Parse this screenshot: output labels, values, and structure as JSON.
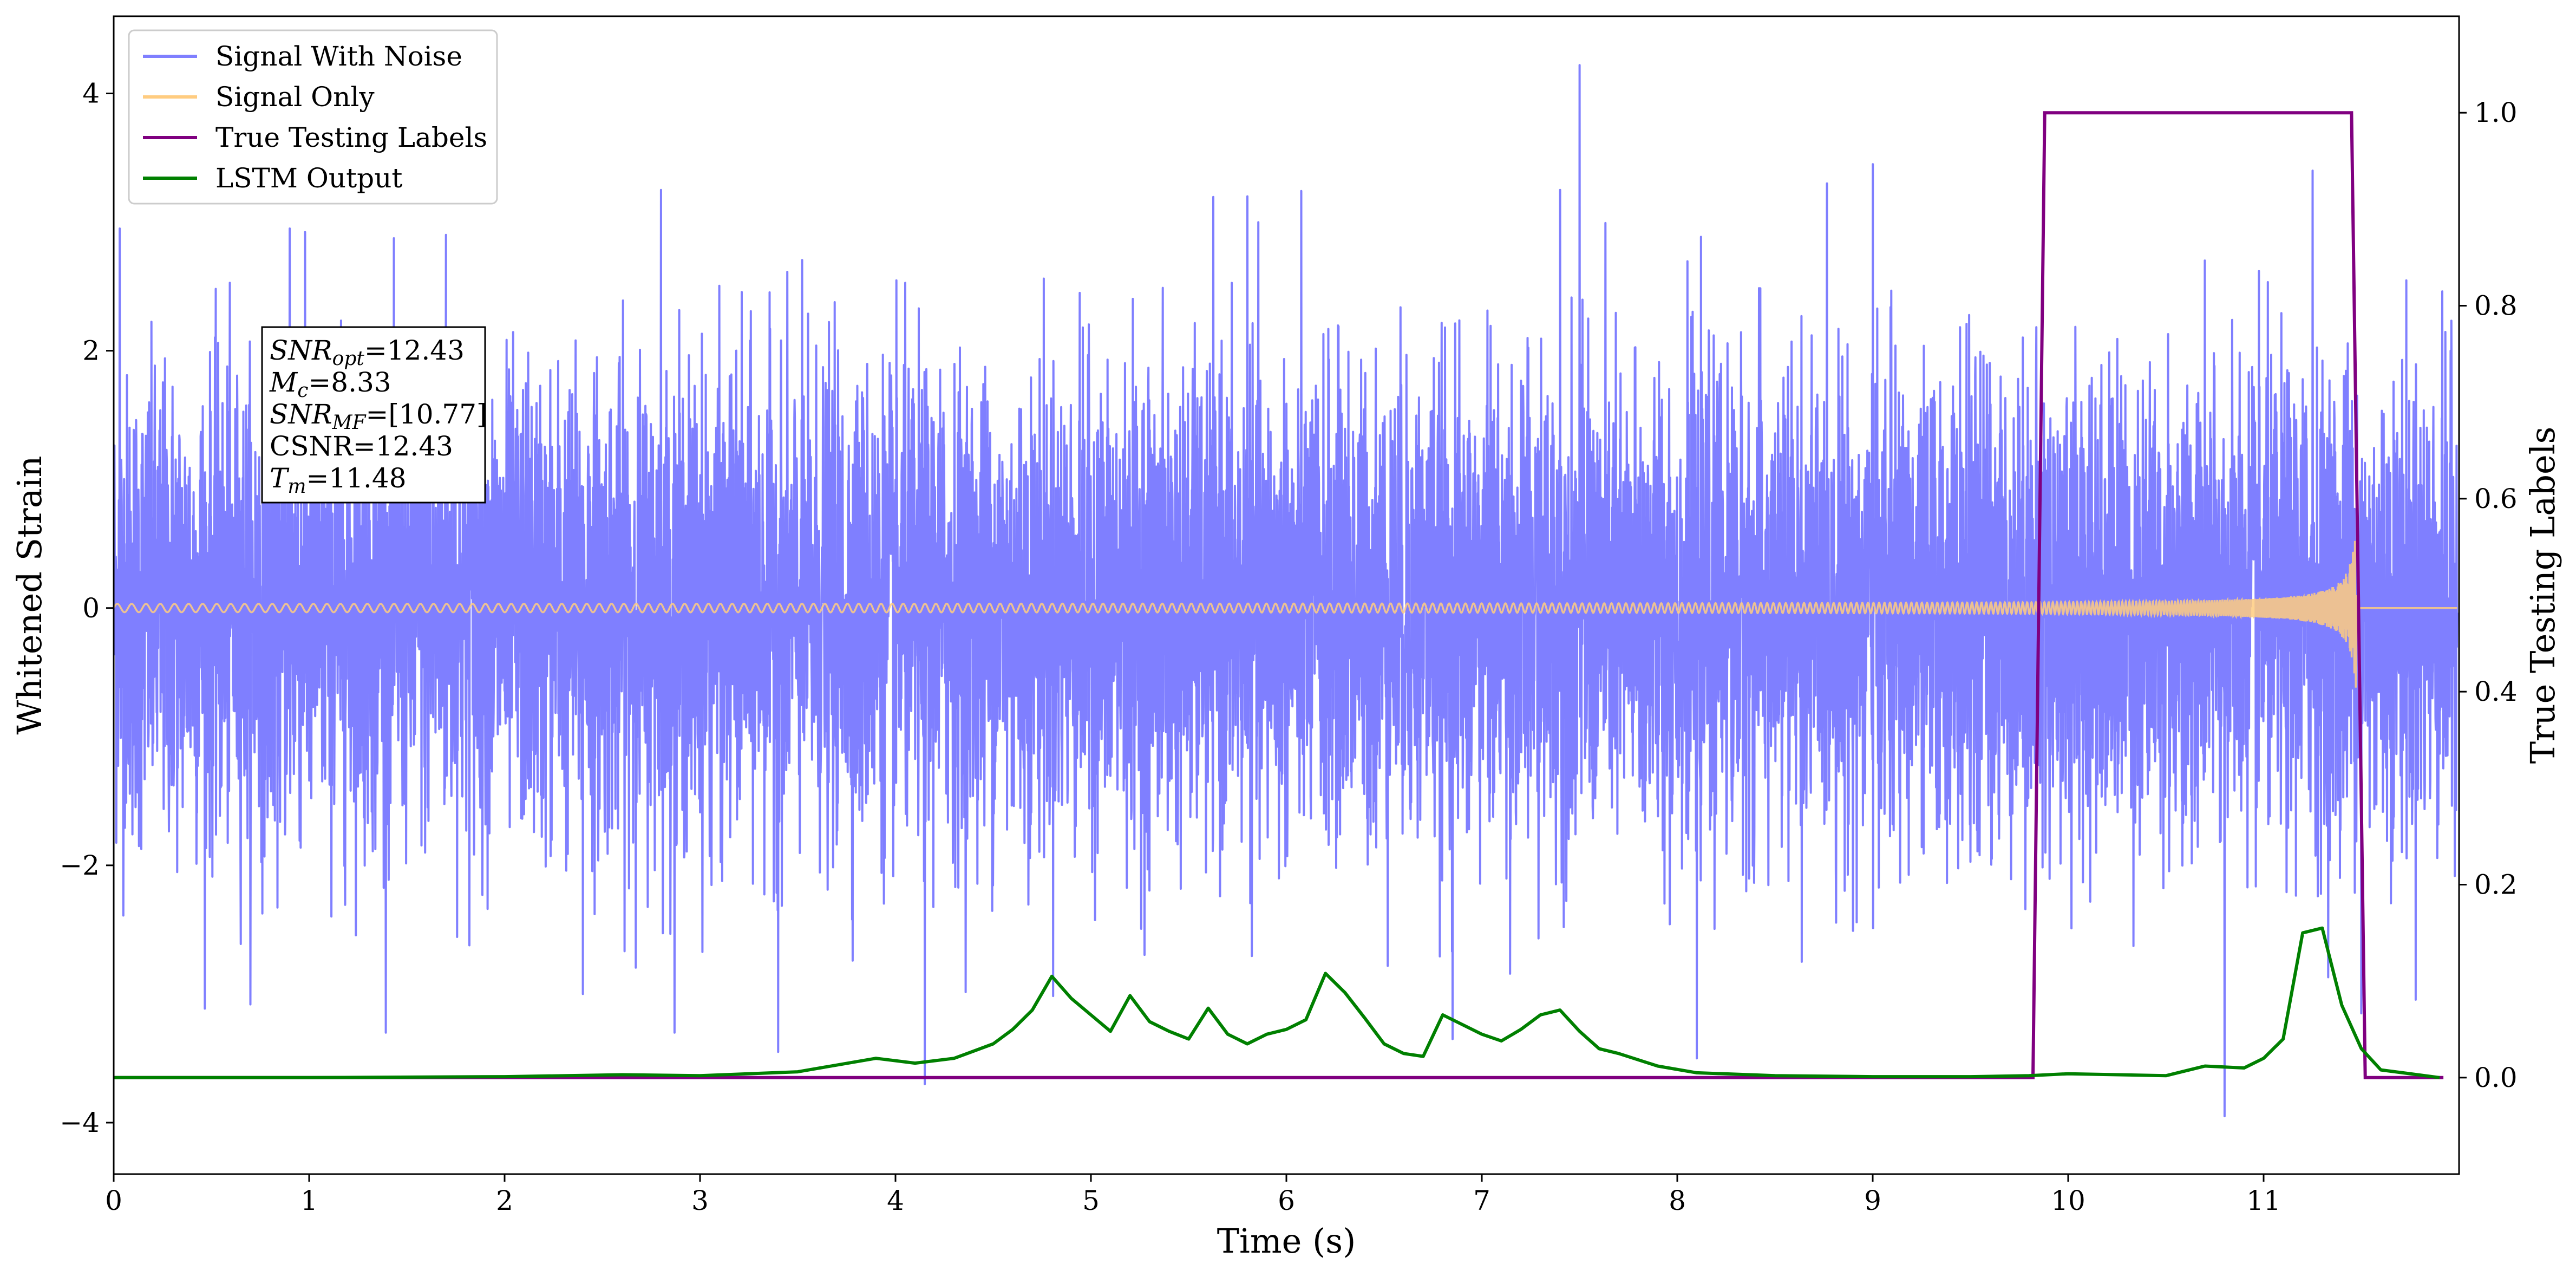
{
  "chart_data": {
    "type": "line",
    "xlabel": "Time (s)",
    "ylabel": "Whitened Strain",
    "ylabel_right": "True Testing Labels",
    "xlim": [
      0,
      12
    ],
    "ylim": [
      -4.4,
      4.6
    ],
    "ylim_right": [
      -0.1,
      1.1
    ],
    "x_ticks": [
      0,
      1,
      2,
      3,
      4,
      5,
      6,
      7,
      8,
      9,
      10,
      11
    ],
    "x_tick_labels": [
      "0",
      "1",
      "2",
      "3",
      "4",
      "5",
      "6",
      "7",
      "8",
      "9",
      "10",
      "11"
    ],
    "y_ticks": [
      -4,
      -2,
      0,
      2,
      4
    ],
    "y_tick_labels": [
      "−4",
      "−2",
      "0",
      "2",
      "4"
    ],
    "y_right_ticks": [
      0.0,
      0.2,
      0.4,
      0.6,
      0.8,
      1.0
    ],
    "y_right_tick_labels": [
      "0.0",
      "0.2",
      "0.4",
      "0.6",
      "0.8",
      "1.0"
    ],
    "grid": false,
    "legend_position": "top-left",
    "series": [
      {
        "name": "Signal With Noise",
        "color": "#7f7fff",
        "axis": "left",
        "noise_std": 0.9,
        "spike_peaks": [
          {
            "x": 0.03,
            "y": 2.95
          },
          {
            "x": 0.9,
            "y": 2.95
          },
          {
            "x": 1.7,
            "y": 2.9
          },
          {
            "x": 2.4,
            "y": -3.0
          },
          {
            "x": 2.8,
            "y": 3.25
          },
          {
            "x": 3.4,
            "y": -3.45
          },
          {
            "x": 4.15,
            "y": -3.7
          },
          {
            "x": 5.8,
            "y": 3.2
          },
          {
            "x": 6.85,
            "y": -3.35
          },
          {
            "x": 7.4,
            "y": 3.25
          },
          {
            "x": 7.5,
            "y": 4.22
          },
          {
            "x": 8.1,
            "y": -3.5
          },
          {
            "x": 9.0,
            "y": 3.45
          },
          {
            "x": 10.8,
            "y": -3.95
          },
          {
            "x": 11.25,
            "y": 3.4
          },
          {
            "x": 11.5,
            "y": -3.15
          }
        ]
      },
      {
        "name": "Signal Only",
        "color": "#ffcc80",
        "axis": "left",
        "chirp": {
          "merger_time": 11.48,
          "initial_amplitude": 0.03,
          "final_amplitude": 0.85
        }
      },
      {
        "name": "True Testing Labels",
        "color": "#800080",
        "axis": "right",
        "x": [
          0,
          9.82,
          9.88,
          11.45,
          11.52,
          11.92
        ],
        "y": [
          0,
          0,
          1,
          1,
          0,
          0
        ]
      },
      {
        "name": "LSTM Output",
        "color": "#008000",
        "axis": "right",
        "x": [
          0,
          1.0,
          2.0,
          2.6,
          3.0,
          3.5,
          3.9,
          4.1,
          4.3,
          4.5,
          4.6,
          4.7,
          4.8,
          4.9,
          5.0,
          5.1,
          5.2,
          5.3,
          5.4,
          5.5,
          5.6,
          5.7,
          5.8,
          5.9,
          6.0,
          6.1,
          6.2,
          6.3,
          6.4,
          6.5,
          6.6,
          6.7,
          6.8,
          6.9,
          7.0,
          7.1,
          7.2,
          7.3,
          7.4,
          7.5,
          7.6,
          7.7,
          7.9,
          8.1,
          8.5,
          9.0,
          9.5,
          9.8,
          10.0,
          10.5,
          10.7,
          10.9,
          11.0,
          11.1,
          11.2,
          11.3,
          11.4,
          11.5,
          11.6,
          11.9
        ],
        "y": [
          0,
          0,
          0.001,
          0.003,
          0.002,
          0.006,
          0.02,
          0.015,
          0.02,
          0.035,
          0.05,
          0.07,
          0.105,
          0.082,
          0.065,
          0.048,
          0.085,
          0.058,
          0.048,
          0.04,
          0.072,
          0.045,
          0.035,
          0.045,
          0.05,
          0.06,
          0.108,
          0.088,
          0.062,
          0.035,
          0.025,
          0.022,
          0.065,
          0.055,
          0.045,
          0.038,
          0.05,
          0.065,
          0.07,
          0.048,
          0.03,
          0.025,
          0.012,
          0.005,
          0.002,
          0.001,
          0.001,
          0.002,
          0.004,
          0.002,
          0.012,
          0.01,
          0.02,
          0.04,
          0.15,
          0.155,
          0.075,
          0.03,
          0.008,
          0.0
        ]
      }
    ],
    "annotation": [
      {
        "base": "SNR",
        "sub": "opt",
        "value": "=12.43"
      },
      {
        "base": "M",
        "sub": "c",
        "value": "=8.33"
      },
      {
        "base": "SNR",
        "sub": "MF",
        "value": "=[10.77]"
      },
      {
        "base": "",
        "sub": "",
        "value": "CSNR=12.43"
      },
      {
        "base": "T",
        "sub": "m",
        "value": "=11.48"
      }
    ]
  }
}
